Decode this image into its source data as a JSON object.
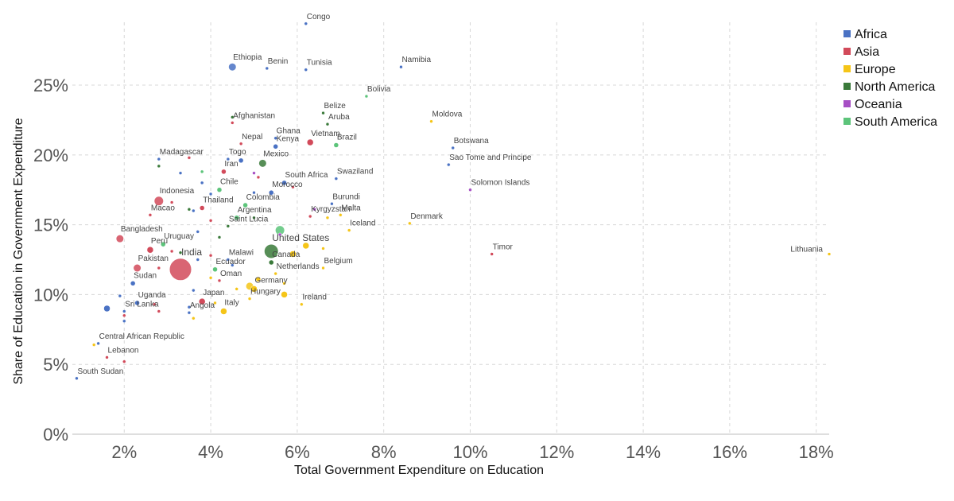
{
  "chart_data": {
    "type": "scatter",
    "title": "",
    "xlabel": "Total Government Expenditure on Education",
    "ylabel": "Share of Education in Government Expenditure",
    "xlim": [
      0.8,
      18.3
    ],
    "ylim": [
      0,
      29.5
    ],
    "x_ticks": [
      2,
      4,
      6,
      8,
      10,
      12,
      14,
      16,
      18
    ],
    "y_ticks": [
      0,
      5,
      10,
      15,
      20,
      25
    ],
    "x_tick_labels": [
      "2%",
      "4%",
      "6%",
      "8%",
      "10%",
      "12%",
      "14%",
      "16%",
      "18%"
    ],
    "y_tick_labels": [
      "0%",
      "5%",
      "10%",
      "15%",
      "20%",
      "25%"
    ],
    "grid": true,
    "legend_position": "top-right",
    "series": [
      {
        "name": "Africa",
        "color": "#4a72c4",
        "points": [
          {
            "x": 6.2,
            "y": 29.4,
            "size": 2,
            "label": "Congo"
          },
          {
            "x": 4.5,
            "y": 26.3,
            "size": 5,
            "label": "Ethiopia"
          },
          {
            "x": 5.3,
            "y": 26.2,
            "size": 2,
            "label": "Benin"
          },
          {
            "x": 6.2,
            "y": 26.1,
            "size": 2,
            "label": "Tunisia"
          },
          {
            "x": 8.4,
            "y": 26.3,
            "size": 2,
            "label": "Namibia"
          },
          {
            "x": 5.5,
            "y": 21.2,
            "size": 2,
            "label": "Ghana"
          },
          {
            "x": 5.5,
            "y": 20.6,
            "size": 3,
            "label": "Kenya"
          },
          {
            "x": 9.6,
            "y": 20.5,
            "size": 2,
            "label": "Botswana"
          },
          {
            "x": 9.5,
            "y": 19.3,
            "size": 2,
            "label": "Sao Tome and Principe"
          },
          {
            "x": 2.8,
            "y": 19.7,
            "size": 2,
            "label": "Madagascar"
          },
          {
            "x": 4.4,
            "y": 19.7,
            "size": 2,
            "label": "Togo"
          },
          {
            "x": 5.7,
            "y": 18.0,
            "size": 3,
            "label": "South Africa"
          },
          {
            "x": 6.9,
            "y": 18.3,
            "size": 2,
            "label": "Swaziland"
          },
          {
            "x": 5.4,
            "y": 17.3,
            "size": 3,
            "label": "Morocco"
          },
          {
            "x": 6.8,
            "y": 16.5,
            "size": 2,
            "label": "Burundi"
          },
          {
            "x": 4.4,
            "y": 12.5,
            "size": 2,
            "label": "Malawi"
          },
          {
            "x": 2.2,
            "y": 10.8,
            "size": 3,
            "label": "Sudan"
          },
          {
            "x": 2.3,
            "y": 9.4,
            "size": 3,
            "label": "Uganda"
          },
          {
            "x": 1.6,
            "y": 9.0,
            "size": 4,
            "label": ""
          },
          {
            "x": 2.0,
            "y": 8.8,
            "size": 2,
            "label": "Sri Lanka"
          },
          {
            "x": 3.5,
            "y": 8.7,
            "size": 2,
            "label": "Angola"
          },
          {
            "x": 1.4,
            "y": 6.5,
            "size": 2,
            "label": "Central African Republic"
          },
          {
            "x": 0.9,
            "y": 4.0,
            "size": 2,
            "label": "South Sudan"
          },
          {
            "x": 4.7,
            "y": 19.6,
            "size": 3,
            "label": ""
          },
          {
            "x": 4.0,
            "y": 17.2,
            "size": 2,
            "label": ""
          },
          {
            "x": 3.8,
            "y": 18.0,
            "size": 2,
            "label": ""
          },
          {
            "x": 3.3,
            "y": 18.7,
            "size": 2,
            "label": ""
          },
          {
            "x": 5.0,
            "y": 17.3,
            "size": 2,
            "label": ""
          },
          {
            "x": 3.6,
            "y": 16.0,
            "size": 2,
            "label": ""
          },
          {
            "x": 3.7,
            "y": 14.5,
            "size": 2,
            "label": ""
          },
          {
            "x": 3.7,
            "y": 12.5,
            "size": 2,
            "label": ""
          },
          {
            "x": 3.6,
            "y": 10.3,
            "size": 2,
            "label": ""
          },
          {
            "x": 1.9,
            "y": 9.9,
            "size": 2,
            "label": ""
          },
          {
            "x": 2.0,
            "y": 8.1,
            "size": 2,
            "label": ""
          },
          {
            "x": 3.5,
            "y": 9.1,
            "size": 2,
            "label": ""
          },
          {
            "x": 4.5,
            "y": 12.1,
            "size": 2,
            "label": ""
          }
        ]
      },
      {
        "name": "Asia",
        "color": "#d24a5a",
        "points": [
          {
            "x": 4.5,
            "y": 22.3,
            "size": 2,
            "label": "Afghanistan"
          },
          {
            "x": 4.7,
            "y": 20.8,
            "size": 2,
            "label": "Nepal"
          },
          {
            "x": 6.3,
            "y": 20.9,
            "size": 4,
            "label": "Vietnam"
          },
          {
            "x": 4.3,
            "y": 18.8,
            "size": 3,
            "label": "Iran"
          },
          {
            "x": 2.8,
            "y": 16.7,
            "size": 6,
            "label": "Indonesia"
          },
          {
            "x": 3.8,
            "y": 16.2,
            "size": 3,
            "label": "Thailand"
          },
          {
            "x": 2.6,
            "y": 15.7,
            "size": 2,
            "label": "Macao"
          },
          {
            "x": 6.3,
            "y": 15.6,
            "size": 2,
            "label": "Kyrgyzstan"
          },
          {
            "x": 1.9,
            "y": 14.0,
            "size": 5,
            "label": "Bangladesh"
          },
          {
            "x": 2.6,
            "y": 13.2,
            "size": 4,
            "label": "Peru"
          },
          {
            "x": 2.3,
            "y": 11.9,
            "size": 5,
            "label": "Pakistan"
          },
          {
            "x": 3.3,
            "y": 11.8,
            "size": 14,
            "label": "India"
          },
          {
            "x": 10.5,
            "y": 12.9,
            "size": 2,
            "label": "Timor"
          },
          {
            "x": 4.2,
            "y": 11.0,
            "size": 2,
            "label": "Oman"
          },
          {
            "x": 3.8,
            "y": 9.5,
            "size": 4,
            "label": "Japan"
          },
          {
            "x": 1.6,
            "y": 5.5,
            "size": 2,
            "label": "Lebanon"
          },
          {
            "x": 2.0,
            "y": 5.2,
            "size": 2,
            "label": ""
          },
          {
            "x": 2.0,
            "y": 8.5,
            "size": 2,
            "label": ""
          },
          {
            "x": 2.8,
            "y": 8.8,
            "size": 2,
            "label": ""
          },
          {
            "x": 2.7,
            "y": 9.3,
            "size": 2,
            "label": ""
          },
          {
            "x": 3.1,
            "y": 16.6,
            "size": 2,
            "label": ""
          },
          {
            "x": 3.5,
            "y": 19.8,
            "size": 2,
            "label": ""
          },
          {
            "x": 5.1,
            "y": 18.4,
            "size": 2,
            "label": ""
          },
          {
            "x": 5.9,
            "y": 17.7,
            "size": 2,
            "label": ""
          },
          {
            "x": 4.0,
            "y": 15.3,
            "size": 2,
            "label": ""
          },
          {
            "x": 3.1,
            "y": 13.1,
            "size": 2,
            "label": ""
          },
          {
            "x": 4.0,
            "y": 12.8,
            "size": 2,
            "label": ""
          },
          {
            "x": 2.8,
            "y": 11.9,
            "size": 2,
            "label": ""
          }
        ]
      },
      {
        "name": "Europe",
        "color": "#f5c518",
        "points": [
          {
            "x": 9.1,
            "y": 22.4,
            "size": 2,
            "label": "Moldova"
          },
          {
            "x": 7.0,
            "y": 15.7,
            "size": 2,
            "label": "Malta"
          },
          {
            "x": 8.6,
            "y": 15.1,
            "size": 2,
            "label": "Denmark"
          },
          {
            "x": 7.2,
            "y": 14.6,
            "size": 2,
            "label": "Iceland"
          },
          {
            "x": 18.3,
            "y": 12.9,
            "size": 2,
            "label": "Lithuania"
          },
          {
            "x": 6.6,
            "y": 11.9,
            "size": 2,
            "label": "Belgium"
          },
          {
            "x": 5.5,
            "y": 11.5,
            "size": 2,
            "label": "Netherlands"
          },
          {
            "x": 5.0,
            "y": 10.4,
            "size": 4,
            "label": "Germany"
          },
          {
            "x": 4.9,
            "y": 9.7,
            "size": 2,
            "label": "Hungary"
          },
          {
            "x": 6.1,
            "y": 9.3,
            "size": 2,
            "label": "Ireland"
          },
          {
            "x": 4.3,
            "y": 8.8,
            "size": 4,
            "label": "Italy"
          },
          {
            "x": 5.9,
            "y": 12.9,
            "size": 4,
            "label": ""
          },
          {
            "x": 6.2,
            "y": 13.5,
            "size": 4,
            "label": ""
          },
          {
            "x": 6.6,
            "y": 13.3,
            "size": 2,
            "label": ""
          },
          {
            "x": 5.1,
            "y": 11.1,
            "size": 3,
            "label": ""
          },
          {
            "x": 5.7,
            "y": 10.8,
            "size": 2,
            "label": ""
          },
          {
            "x": 5.7,
            "y": 10.0,
            "size": 4,
            "label": ""
          },
          {
            "x": 4.6,
            "y": 10.4,
            "size": 2,
            "label": ""
          },
          {
            "x": 4.1,
            "y": 9.4,
            "size": 2,
            "label": ""
          },
          {
            "x": 4.0,
            "y": 11.2,
            "size": 2,
            "label": ""
          },
          {
            "x": 3.6,
            "y": 8.3,
            "size": 2,
            "label": ""
          },
          {
            "x": 6.7,
            "y": 15.5,
            "size": 2,
            "label": ""
          },
          {
            "x": 1.3,
            "y": 6.4,
            "size": 2,
            "label": ""
          },
          {
            "x": 4.9,
            "y": 10.6,
            "size": 5,
            "label": ""
          }
        ]
      },
      {
        "name": "North America",
        "color": "#3a7a3a",
        "points": [
          {
            "x": 6.6,
            "y": 23.0,
            "size": 2,
            "label": "Belize"
          },
          {
            "x": 6.7,
            "y": 22.2,
            "size": 2,
            "label": "Aruba"
          },
          {
            "x": 5.2,
            "y": 19.4,
            "size": 5,
            "label": "Mexico"
          },
          {
            "x": 4.4,
            "y": 14.9,
            "size": 2,
            "label": "Saint Lucia"
          },
          {
            "x": 5.4,
            "y": 13.1,
            "size": 9,
            "label": "United States"
          },
          {
            "x": 5.4,
            "y": 12.3,
            "size": 3,
            "label": "Canada"
          },
          {
            "x": 2.8,
            "y": 19.2,
            "size": 2,
            "label": ""
          },
          {
            "x": 4.5,
            "y": 22.7,
            "size": 2,
            "label": ""
          },
          {
            "x": 3.5,
            "y": 16.1,
            "size": 2,
            "label": ""
          },
          {
            "x": 5.0,
            "y": 15.5,
            "size": 2,
            "label": ""
          },
          {
            "x": 4.2,
            "y": 14.1,
            "size": 2,
            "label": ""
          },
          {
            "x": 3.3,
            "y": 13.0,
            "size": 2,
            "label": ""
          }
        ]
      },
      {
        "name": "Oceania",
        "color": "#a64fc4",
        "points": [
          {
            "x": 10.0,
            "y": 17.5,
            "size": 2,
            "label": "Solomon Islands"
          },
          {
            "x": 5.0,
            "y": 18.7,
            "size": 2,
            "label": ""
          },
          {
            "x": 6.4,
            "y": 16.1,
            "size": 2,
            "label": ""
          },
          {
            "x": 5.6,
            "y": 14.3,
            "size": 2,
            "label": ""
          }
        ]
      },
      {
        "name": "South America",
        "color": "#5cc47a",
        "points": [
          {
            "x": 7.6,
            "y": 24.2,
            "size": 2,
            "label": "Bolivia"
          },
          {
            "x": 6.9,
            "y": 20.7,
            "size": 3,
            "label": "Brazil"
          },
          {
            "x": 4.2,
            "y": 17.5,
            "size": 3,
            "label": "Chile"
          },
          {
            "x": 4.8,
            "y": 16.4,
            "size": 3,
            "label": "Colombia"
          },
          {
            "x": 4.6,
            "y": 15.5,
            "size": 3,
            "label": "Argentina"
          },
          {
            "x": 5.6,
            "y": 14.6,
            "size": 6,
            "label": ""
          },
          {
            "x": 2.9,
            "y": 13.6,
            "size": 3,
            "label": "Uruguay"
          },
          {
            "x": 4.1,
            "y": 11.8,
            "size": 3,
            "label": "Ecuador"
          },
          {
            "x": 3.8,
            "y": 18.8,
            "size": 2,
            "label": ""
          }
        ]
      }
    ]
  }
}
